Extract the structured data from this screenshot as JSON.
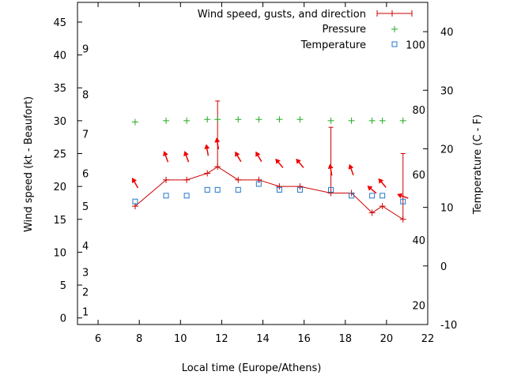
{
  "chart_data": {
    "type": "line",
    "title": "",
    "xlabel": "Local time (Europe/Athens)",
    "ylabel_left": "Wind speed (kt - Beaufort)",
    "ylabel_right": "Temperature (C - F)",
    "xlim": [
      5,
      22
    ],
    "ylim_left": [
      -1,
      48
    ],
    "ylim_right": [
      -10,
      45
    ],
    "x_ticks": [
      6,
      8,
      10,
      12,
      14,
      16,
      18,
      20,
      22
    ],
    "y_ticks_left": [
      0,
      5,
      10,
      15,
      20,
      25,
      30,
      35,
      40,
      45
    ],
    "y_ticks_right": [
      -10,
      0,
      10,
      20,
      30,
      40
    ],
    "beaufort_labels": [
      {
        "label": "1",
        "kt": 1
      },
      {
        "label": "2",
        "kt": 4
      },
      {
        "label": "3",
        "kt": 7
      },
      {
        "label": "4",
        "kt": 11
      },
      {
        "label": "5",
        "kt": 17
      },
      {
        "label": "6",
        "kt": 22
      },
      {
        "label": "7",
        "kt": 28
      },
      {
        "label": "8",
        "kt": 34
      },
      {
        "label": "9",
        "kt": 41
      }
    ],
    "fahrenheit_labels": [
      {
        "label": "20",
        "temp_c": -6.7
      },
      {
        "label": "40",
        "temp_c": 4.4
      },
      {
        "label": "60",
        "temp_c": 15.6
      },
      {
        "label": "80",
        "temp_c": 26.7
      },
      {
        "label": "100",
        "temp_c": 37.8
      }
    ],
    "legend_position": "top-right",
    "colors": {
      "wind": "#cc0000",
      "pressure": "#22aa22",
      "temperature": "#2277cc",
      "arrow": "#ee0000"
    },
    "series": [
      {
        "name": "Wind speed, gusts, and direction",
        "x": [
          7.8,
          9.3,
          10.3,
          11.3,
          11.8,
          12.8,
          13.8,
          14.8,
          15.8,
          17.3,
          18.3,
          19.3,
          19.8,
          20.8
        ],
        "speed": [
          17,
          21,
          21,
          22,
          23,
          21,
          21,
          20,
          20,
          19,
          19,
          16,
          17,
          15
        ],
        "gust": [
          null,
          null,
          null,
          null,
          33,
          null,
          null,
          null,
          null,
          29,
          null,
          null,
          null,
          25
        ],
        "direction_deg": [
          330,
          340,
          340,
          350,
          350,
          330,
          330,
          320,
          320,
          350,
          340,
          310,
          320,
          290
        ]
      },
      {
        "name": "Pressure",
        "x": [
          7.8,
          9.3,
          10.3,
          11.3,
          11.8,
          12.8,
          13.8,
          14.8,
          15.8,
          17.3,
          18.3,
          19.3,
          19.8,
          20.8
        ],
        "values": [
          29.8,
          30.0,
          30.0,
          30.2,
          30.2,
          30.2,
          30.2,
          30.2,
          30.2,
          30.0,
          30.0,
          30.0,
          30.0,
          30.0
        ]
      },
      {
        "name": "Temperature",
        "x": [
          7.8,
          9.3,
          10.3,
          11.3,
          11.8,
          12.8,
          13.8,
          14.8,
          15.8,
          17.3,
          18.3,
          19.3,
          19.8,
          20.8
        ],
        "values": [
          11,
          12,
          12,
          13,
          13,
          13,
          14,
          13,
          13,
          13,
          12,
          12,
          12,
          11
        ]
      }
    ]
  }
}
